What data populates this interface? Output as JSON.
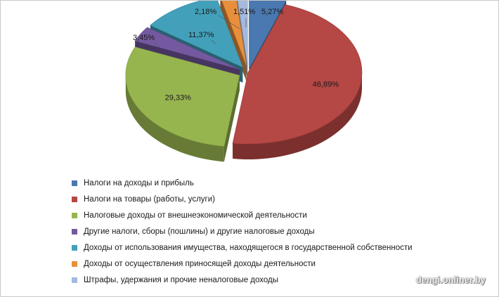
{
  "chart_data": {
    "type": "pie",
    "title": "",
    "legend_position": "bottom",
    "slices": [
      {
        "label": "Налоги на доходы и прибыль",
        "value": 5.27,
        "value_label": "5,27%",
        "color": "#4a78b0"
      },
      {
        "label": "Налоги на товары (работы, услуги)",
        "value": 46.89,
        "value_label": "46,89%",
        "color": "#b54744"
      },
      {
        "label": "Налоговые доходы от внешнеэкономической  деятельности",
        "value": 29.33,
        "value_label": "29,33%",
        "color": "#97b54f"
      },
      {
        "label": "Другие налоги, сборы (пошлины) и другие налоговые доходы",
        "value": 3.45,
        "value_label": "3,45%",
        "color": "#7559a0"
      },
      {
        "label": "Доходы от использования имущества, находящегося в государственной собственности",
        "value": 11.37,
        "value_label": "11,37%",
        "color": "#43a0bb"
      },
      {
        "label": "Доходы от осуществления  приносящей доходы деятельности",
        "value": 2.18,
        "value_label": "2,18%",
        "color": "#e98f3c"
      },
      {
        "label": "Штрафы, удержания и прочие неналоговые доходы",
        "value": 1.51,
        "value_label": "1,51%",
        "color": "#a4b9dc"
      }
    ]
  },
  "watermark": "dengi.onliner.by"
}
